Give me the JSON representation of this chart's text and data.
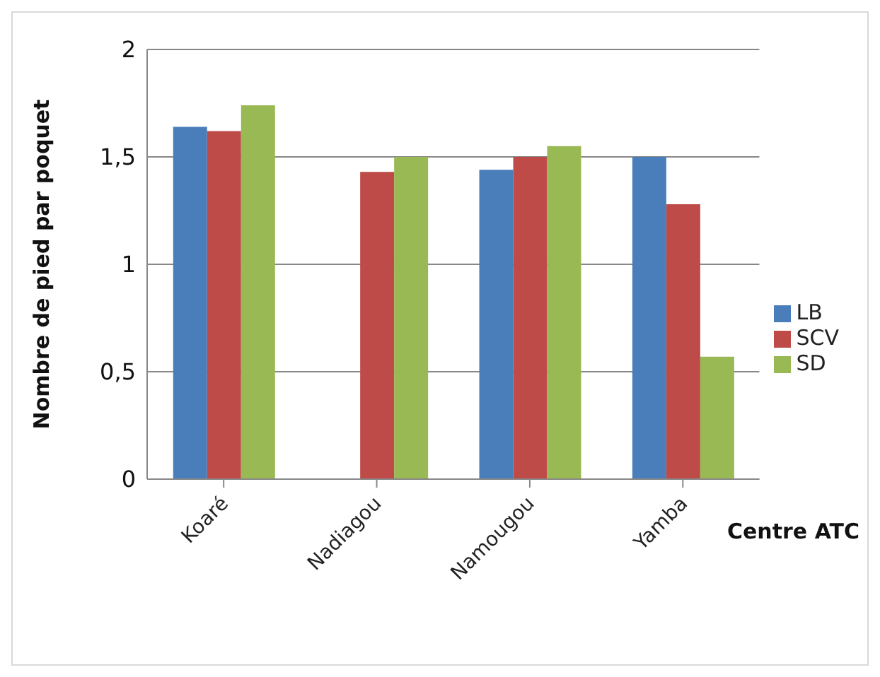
{
  "chart_data": {
    "type": "bar",
    "ylabel": "Nombre de pied par poquet",
    "xlabel": "Centre ATC",
    "categories": [
      "Koaré",
      "Nadiagou",
      "Namougou",
      "Yamba"
    ],
    "series": [
      {
        "name": "LB",
        "color": "#4a7ebb",
        "values": [
          1.64,
          null,
          1.44,
          1.5
        ]
      },
      {
        "name": "SCV",
        "color": "#be4b48",
        "values": [
          1.62,
          1.43,
          1.5,
          1.28
        ]
      },
      {
        "name": "SD",
        "color": "#98b954",
        "values": [
          1.74,
          1.5,
          1.55,
          0.57
        ]
      }
    ],
    "ylim": [
      0,
      2
    ],
    "yticks": [
      0,
      {
        "value": 0.5,
        "label": "0,5"
      },
      1,
      {
        "value": 1.5,
        "label": "1,5"
      },
      2
    ],
    "grid": "y",
    "legend": "right"
  }
}
